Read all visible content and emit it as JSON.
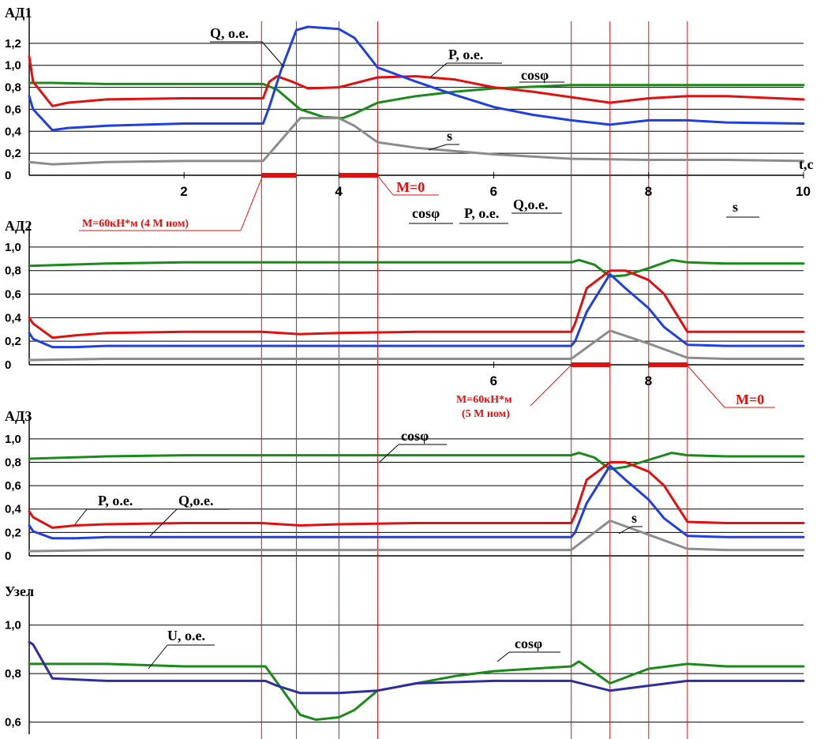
{
  "chart_data": [
    {
      "type": "line",
      "title": "АД1",
      "xlabel": "t,c",
      "xlim": [
        0,
        10
      ],
      "ylim": [
        0,
        1.4
      ],
      "grid": "horizontal",
      "x_ticks": [
        "2",
        "4",
        "6",
        "8",
        "10"
      ],
      "y_ticks": [
        "0",
        "0,2",
        "0,4",
        "0,6",
        "0,8",
        "1,0",
        "1,2"
      ],
      "series": [
        {
          "name": "cosφ",
          "color": "#1a8a1a",
          "x": [
            0,
            0.3,
            1,
            2,
            2.9,
            3.02,
            3.2,
            3.5,
            3.8,
            4.05,
            4.2,
            4.5,
            5,
            5.5,
            6,
            7,
            8,
            9,
            10
          ],
          "y": [
            0.84,
            0.84,
            0.83,
            0.83,
            0.83,
            0.83,
            0.78,
            0.6,
            0.53,
            0.52,
            0.56,
            0.66,
            0.72,
            0.76,
            0.79,
            0.82,
            0.82,
            0.82,
            0.82
          ]
        },
        {
          "name": "P, о.е.",
          "color": "#e01010",
          "x": [
            0,
            0.05,
            0.3,
            0.5,
            1,
            2,
            2.8,
            3.02,
            3.1,
            3.2,
            3.4,
            3.6,
            4,
            4.5,
            5,
            5.5,
            6,
            6.5,
            7,
            7.5,
            8,
            8.5,
            9,
            10
          ],
          "y": [
            1.08,
            0.85,
            0.63,
            0.66,
            0.69,
            0.7,
            0.7,
            0.7,
            0.85,
            0.9,
            0.85,
            0.79,
            0.8,
            0.89,
            0.9,
            0.87,
            0.8,
            0.76,
            0.71,
            0.66,
            0.7,
            0.72,
            0.72,
            0.69
          ]
        },
        {
          "name": "Q, о.е.",
          "color": "#1f3fe0",
          "x": [
            0,
            0.05,
            0.3,
            0.5,
            1,
            2,
            3,
            3.02,
            3.1,
            3.25,
            3.45,
            3.6,
            4,
            4.2,
            4.5,
            5,
            5.5,
            6,
            6.5,
            7,
            7.5,
            8,
            8.5,
            9,
            10
          ],
          "y": [
            0.72,
            0.6,
            0.41,
            0.43,
            0.45,
            0.47,
            0.47,
            0.47,
            0.62,
            0.95,
            1.32,
            1.35,
            1.33,
            1.25,
            0.98,
            0.85,
            0.73,
            0.62,
            0.55,
            0.5,
            0.46,
            0.5,
            0.5,
            0.48,
            0.47
          ]
        },
        {
          "name": "s",
          "color": "#8c8c8c",
          "x": [
            0,
            0.3,
            1,
            2,
            2.9,
            3.02,
            3.5,
            4,
            4.2,
            4.5,
            5,
            6,
            7,
            8,
            9,
            10
          ],
          "y": [
            0.12,
            0.1,
            0.12,
            0.13,
            0.13,
            0.13,
            0.52,
            0.52,
            0.45,
            0.3,
            0.25,
            0.19,
            0.15,
            0.14,
            0.14,
            0.13
          ]
        }
      ],
      "load_intervals": [
        [
          3.0,
          3.45
        ],
        [
          4.0,
          4.5
        ]
      ],
      "annotations": [
        "M=60кН*м (4 М ном)",
        "M=0"
      ]
    },
    {
      "type": "line",
      "title": "АД2",
      "xlim": [
        0,
        10
      ],
      "ylim": [
        0,
        1.1
      ],
      "grid": "horizontal",
      "x_ticks": [
        "6",
        "8"
      ],
      "y_ticks": [
        "0",
        "0,2",
        "0,4",
        "0,6",
        "0,8",
        "1,0"
      ],
      "legend": [
        "cosφ",
        "P, о.е.",
        "Q, о.е.",
        "s"
      ],
      "series": [
        {
          "name": "cosφ",
          "color": "#1a8a1a",
          "x": [
            0,
            1,
            2,
            3,
            4,
            5,
            6,
            7,
            7.1,
            7.3,
            7.5,
            7.7,
            8,
            8.3,
            8.5,
            9,
            10
          ],
          "y": [
            0.84,
            0.86,
            0.87,
            0.87,
            0.87,
            0.87,
            0.87,
            0.87,
            0.89,
            0.85,
            0.75,
            0.76,
            0.82,
            0.89,
            0.87,
            0.86,
            0.86
          ]
        },
        {
          "name": "P, о.е.",
          "color": "#e01010",
          "x": [
            0,
            0.05,
            0.3,
            0.6,
            1,
            2,
            3,
            3.5,
            4,
            5,
            6,
            7,
            7.05,
            7.2,
            7.5,
            7.7,
            8,
            8.2,
            8.5,
            9,
            10
          ],
          "y": [
            0.4,
            0.35,
            0.23,
            0.25,
            0.27,
            0.28,
            0.28,
            0.26,
            0.27,
            0.28,
            0.28,
            0.28,
            0.35,
            0.65,
            0.8,
            0.8,
            0.72,
            0.6,
            0.28,
            0.28,
            0.28
          ]
        },
        {
          "name": "Q, о.е.",
          "color": "#1f3fe0",
          "x": [
            0,
            0.05,
            0.3,
            0.6,
            1,
            2,
            3,
            4,
            5,
            6,
            7,
            7.05,
            7.2,
            7.5,
            7.7,
            8,
            8.2,
            8.5,
            9,
            10
          ],
          "y": [
            0.27,
            0.22,
            0.15,
            0.15,
            0.16,
            0.16,
            0.16,
            0.16,
            0.16,
            0.16,
            0.16,
            0.2,
            0.45,
            0.77,
            0.65,
            0.48,
            0.32,
            0.17,
            0.16,
            0.16
          ]
        },
        {
          "name": "s",
          "color": "#8c8c8c",
          "x": [
            0,
            1,
            2,
            3,
            4,
            5,
            6,
            7,
            7.5,
            8,
            8.5,
            9,
            10
          ],
          "y": [
            0.04,
            0.05,
            0.05,
            0.05,
            0.05,
            0.05,
            0.05,
            0.05,
            0.29,
            0.18,
            0.06,
            0.05,
            0.05
          ]
        }
      ],
      "load_intervals": [
        [
          7.0,
          7.5
        ],
        [
          8.0,
          8.5
        ]
      ],
      "annotations": [
        "M=60кН*м",
        "(5 М ном)",
        "M=0"
      ]
    },
    {
      "type": "line",
      "title": "АД3",
      "xlim": [
        0,
        10
      ],
      "ylim": [
        0,
        1.1
      ],
      "grid": "horizontal",
      "y_ticks": [
        "0",
        "0,2",
        "0,4",
        "0,6",
        "0,8",
        "1,0"
      ],
      "series": [
        {
          "name": "cosφ",
          "color": "#1a8a1a",
          "x": [
            0,
            1,
            2,
            3,
            4,
            5,
            6,
            7,
            7.1,
            7.3,
            7.5,
            7.7,
            8,
            8.3,
            8.5,
            9,
            10
          ],
          "y": [
            0.83,
            0.85,
            0.86,
            0.86,
            0.86,
            0.86,
            0.86,
            0.86,
            0.88,
            0.84,
            0.74,
            0.76,
            0.82,
            0.88,
            0.86,
            0.85,
            0.85
          ]
        },
        {
          "name": "P, о.е.",
          "color": "#e01010",
          "x": [
            0,
            0.05,
            0.3,
            0.6,
            1,
            2,
            3,
            3.5,
            4,
            5,
            6,
            7,
            7.05,
            7.2,
            7.5,
            7.7,
            8,
            8.2,
            8.5,
            9,
            10
          ],
          "y": [
            0.38,
            0.33,
            0.24,
            0.26,
            0.27,
            0.28,
            0.28,
            0.26,
            0.27,
            0.28,
            0.28,
            0.28,
            0.35,
            0.65,
            0.8,
            0.8,
            0.72,
            0.6,
            0.29,
            0.28,
            0.28
          ]
        },
        {
          "name": "Q, о.е.",
          "color": "#1f3fe0",
          "x": [
            0,
            0.05,
            0.3,
            0.6,
            1,
            2,
            3,
            4,
            5,
            6,
            7,
            7.05,
            7.2,
            7.5,
            7.7,
            8,
            8.2,
            8.5,
            9,
            10
          ],
          "y": [
            0.26,
            0.21,
            0.15,
            0.15,
            0.16,
            0.16,
            0.16,
            0.16,
            0.16,
            0.16,
            0.16,
            0.2,
            0.45,
            0.77,
            0.65,
            0.48,
            0.32,
            0.17,
            0.16,
            0.16
          ]
        },
        {
          "name": "s",
          "color": "#8c8c8c",
          "x": [
            0,
            1,
            2,
            3,
            4,
            5,
            6,
            7,
            7.5,
            8,
            8.5,
            9,
            10
          ],
          "y": [
            0.04,
            0.05,
            0.05,
            0.05,
            0.05,
            0.05,
            0.05,
            0.05,
            0.3,
            0.18,
            0.06,
            0.05,
            0.05
          ]
        }
      ]
    },
    {
      "type": "line",
      "title": "Узел",
      "xlim": [
        0,
        10
      ],
      "ylim": [
        0.55,
        1.1
      ],
      "grid": "horizontal",
      "y_ticks": [
        "0,6",
        "0,8",
        "1,0"
      ],
      "series": [
        {
          "name": "cosφ",
          "color": "#1a8a1a",
          "x": [
            0,
            1,
            2,
            3,
            3.05,
            3.3,
            3.5,
            3.7,
            4,
            4.2,
            4.5,
            5,
            5.5,
            6,
            6.5,
            7,
            7.1,
            7.5,
            8,
            8.5,
            9,
            10
          ],
          "y": [
            0.84,
            0.84,
            0.83,
            0.83,
            0.83,
            0.72,
            0.63,
            0.61,
            0.62,
            0.65,
            0.73,
            0.76,
            0.79,
            0.81,
            0.82,
            0.83,
            0.85,
            0.76,
            0.82,
            0.84,
            0.83,
            0.83
          ]
        },
        {
          "name": "U, о.е.",
          "color": "#2e2e9e",
          "x": [
            0,
            0.05,
            0.3,
            1,
            2,
            3,
            3.05,
            3.2,
            3.5,
            4,
            4.5,
            5,
            6,
            7,
            7.5,
            8,
            8.5,
            9,
            10
          ],
          "y": [
            0.93,
            0.92,
            0.78,
            0.77,
            0.77,
            0.77,
            0.77,
            0.75,
            0.72,
            0.72,
            0.73,
            0.76,
            0.77,
            0.77,
            0.73,
            0.75,
            0.77,
            0.77,
            0.77
          ]
        }
      ]
    }
  ],
  "labels": {
    "q_ad1": "Q, о.е.",
    "p_ad1": "P, о.е.",
    "cos_ad1": "cosφ",
    "s_ad1": "s",
    "cos_ad2": "cosφ",
    "p_ad2": "P, о.е.",
    "q_ad2": "Q,о.е.",
    "s_ad2": "s",
    "cos_ad3": "cosφ",
    "p_ad3": "P, о.е.",
    "q_ad3": "Q,о.е.",
    "s_ad3": "s",
    "u_node": "U, о.е.",
    "cos_node": "cosφ",
    "load1": "M=60кН*м (4 М ном)",
    "m0_1": "M=0",
    "load2": "M=60кН*м",
    "load2b": "(5 М ном)",
    "m0_2": "M=0"
  },
  "event_times": [
    3.0,
    3.45,
    4.0,
    4.5,
    7.0,
    7.5,
    8.0,
    8.5
  ]
}
